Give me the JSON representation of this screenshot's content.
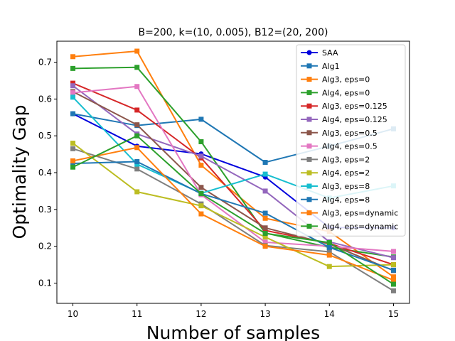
{
  "chart_data": {
    "type": "line",
    "title": "B=200, k=(10, 0.005), B12=(20, 200)",
    "xlabel": "Number of samples",
    "ylabel": "Optimality Gap",
    "x": [
      10,
      11,
      12,
      13,
      14,
      15
    ],
    "xlim": [
      9.75,
      15.25
    ],
    "ylim": [
      0.045,
      0.757
    ],
    "xticks": [
      10,
      11,
      12,
      13,
      14,
      15
    ],
    "yticks": [
      0.1,
      0.2,
      0.3,
      0.4,
      0.5,
      0.6,
      0.7
    ],
    "legend_position": "top-right",
    "grid": false,
    "series": [
      {
        "name": "SAA",
        "color": "#0000dd",
        "marker": "circle",
        "values": [
          0.56,
          0.472,
          0.451,
          0.388,
          0.251,
          0.25
        ]
      },
      {
        "name": "Alg1",
        "color": "#1f77b4",
        "marker": "square",
        "values": [
          0.56,
          0.528,
          0.545,
          0.428,
          0.472,
          0.519
        ]
      },
      {
        "name": "Alg3, eps=0",
        "color": "#ff7f0e",
        "marker": "square",
        "values": [
          0.715,
          0.73,
          0.42,
          0.276,
          0.24,
          0.117
        ]
      },
      {
        "name": "Alg4, eps=0",
        "color": "#2ca02c",
        "marker": "square",
        "values": [
          0.683,
          0.686,
          0.484,
          0.236,
          0.197,
          0.171
        ]
      },
      {
        "name": "Alg3, eps=0.125",
        "color": "#d62728",
        "marker": "square",
        "values": [
          0.643,
          0.57,
          0.44,
          0.243,
          0.208,
          0.15
        ]
      },
      {
        "name": "Alg4, eps=0.125",
        "color": "#9467bd",
        "marker": "square",
        "values": [
          0.636,
          0.505,
          0.445,
          0.35,
          0.212,
          0.169
        ]
      },
      {
        "name": "Alg3, eps=0.5",
        "color": "#8c564b",
        "marker": "square",
        "values": [
          0.62,
          0.53,
          0.36,
          0.25,
          0.206,
          0.134
        ]
      },
      {
        "name": "Alg4, eps=0.5",
        "color": "#e377c2",
        "marker": "square",
        "values": [
          0.617,
          0.634,
          0.34,
          0.211,
          0.2,
          0.186
        ]
      },
      {
        "name": "Alg3, eps=2",
        "color": "#7f7f7f",
        "marker": "square",
        "values": [
          0.465,
          0.41,
          0.315,
          0.202,
          0.185,
          0.079
        ]
      },
      {
        "name": "Alg4, eps=2",
        "color": "#bcbd22",
        "marker": "square",
        "values": [
          0.48,
          0.348,
          0.31,
          0.225,
          0.145,
          0.15
        ]
      },
      {
        "name": "Alg3, eps=8",
        "color": "#17becf",
        "marker": "square",
        "values": [
          0.605,
          0.423,
          0.344,
          0.396,
          0.331,
          0.364
        ]
      },
      {
        "name": "Alg4, eps=8",
        "color": "#1f77b4",
        "marker": "square",
        "values": [
          0.425,
          0.43,
          0.343,
          0.29,
          0.197,
          0.135
        ]
      },
      {
        "name": "Alg3, eps=dynamic",
        "color": "#ff7f0e",
        "marker": "square",
        "values": [
          0.432,
          0.468,
          0.288,
          0.2,
          0.176,
          0.108
        ]
      },
      {
        "name": "Alg4, eps=dynamic",
        "color": "#2ca02c",
        "marker": "square",
        "values": [
          0.415,
          0.5,
          0.343,
          0.235,
          0.21,
          0.097
        ]
      }
    ]
  }
}
